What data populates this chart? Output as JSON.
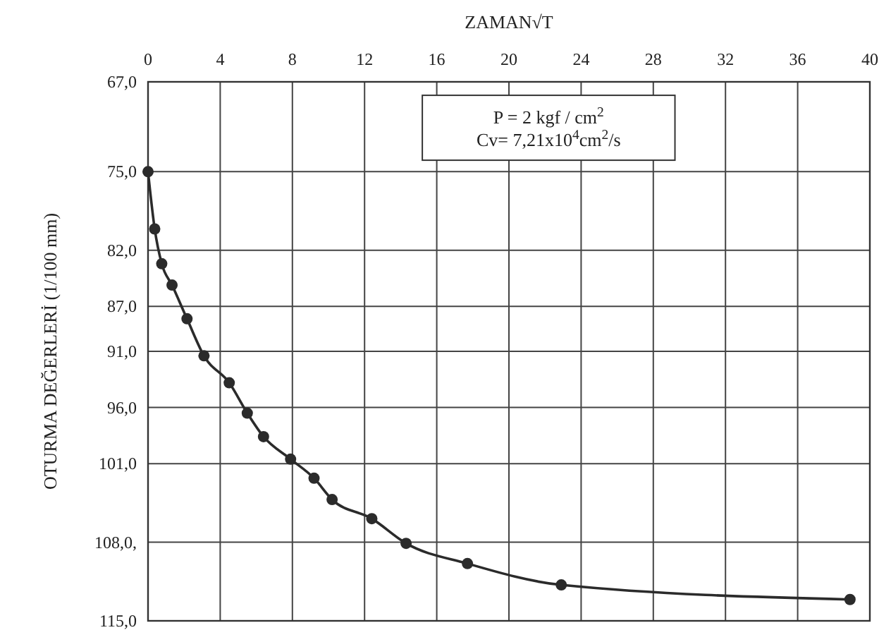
{
  "chart_data": {
    "type": "line",
    "title": "ZAMAN√T",
    "ylabel": "OTURMA DEĞERLERİ (1/100 mm)",
    "annotations": [
      "P = 2 kgf / cm$^{2}$",
      "Cv= 7,21x10$^{4}$cm$^{2}$/s"
    ],
    "x": [
      0,
      0.37,
      0.76,
      1.33,
      2.16,
      3.1,
      4.5,
      5.5,
      6.4,
      7.9,
      9.2,
      10.2,
      12.4,
      14.3,
      17.7,
      22.9,
      38.9
    ],
    "series": [
      {
        "color": "#2b2b2b",
        "values": [
          75.0,
          80.1,
          83.2,
          85.1,
          88.1,
          91.4,
          93.8,
          96.5,
          98.6,
          100.6,
          102.3,
          104.2,
          105.9,
          108.1,
          109.9,
          111.8,
          113.1
        ]
      }
    ],
    "xlim": [
      0,
      40
    ],
    "xticks": [
      0,
      4,
      8,
      12,
      16,
      20,
      24,
      28,
      32,
      36,
      40
    ],
    "ylim": [
      115,
      67
    ],
    "yticks": [
      {
        "value": 67,
        "label": "67,0"
      },
      {
        "value": 75,
        "label": "75,0"
      },
      {
        "value": 82,
        "label": "82,0"
      },
      {
        "value": 87,
        "label": "87,0"
      },
      {
        "value": 91,
        "label": "91,0"
      },
      {
        "value": 96,
        "label": "96,0"
      },
      {
        "value": 101,
        "label": "101,0"
      },
      {
        "value": 108,
        "label": "108,0,"
      },
      {
        "value": 115,
        "label": "115,0"
      }
    ],
    "grid": true,
    "marker": "circle",
    "line_style": "solid"
  }
}
